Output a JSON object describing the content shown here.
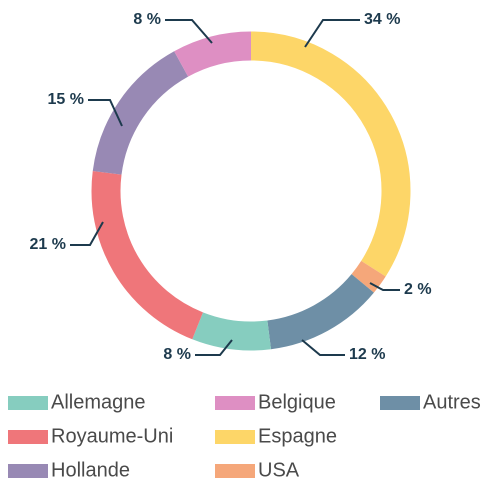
{
  "chart_data": {
    "type": "donut",
    "categories": [
      "Espagne",
      "USA",
      "Autres",
      "Allemagne",
      "Royaume-Uni",
      "Hollande",
      "Belgique"
    ],
    "values": [
      34,
      2,
      12,
      8,
      21,
      15,
      8
    ],
    "value_labels": [
      "34 %",
      "2 %",
      "12 %",
      "8 %",
      "21 %",
      "15 %",
      "8 %"
    ],
    "colors": [
      "#fdd668",
      "#f5a77a",
      "#6e8fa6",
      "#86cdbf",
      "#ef767a",
      "#9889b4",
      "#de8fc3"
    ],
    "legend": "bottom"
  }
}
